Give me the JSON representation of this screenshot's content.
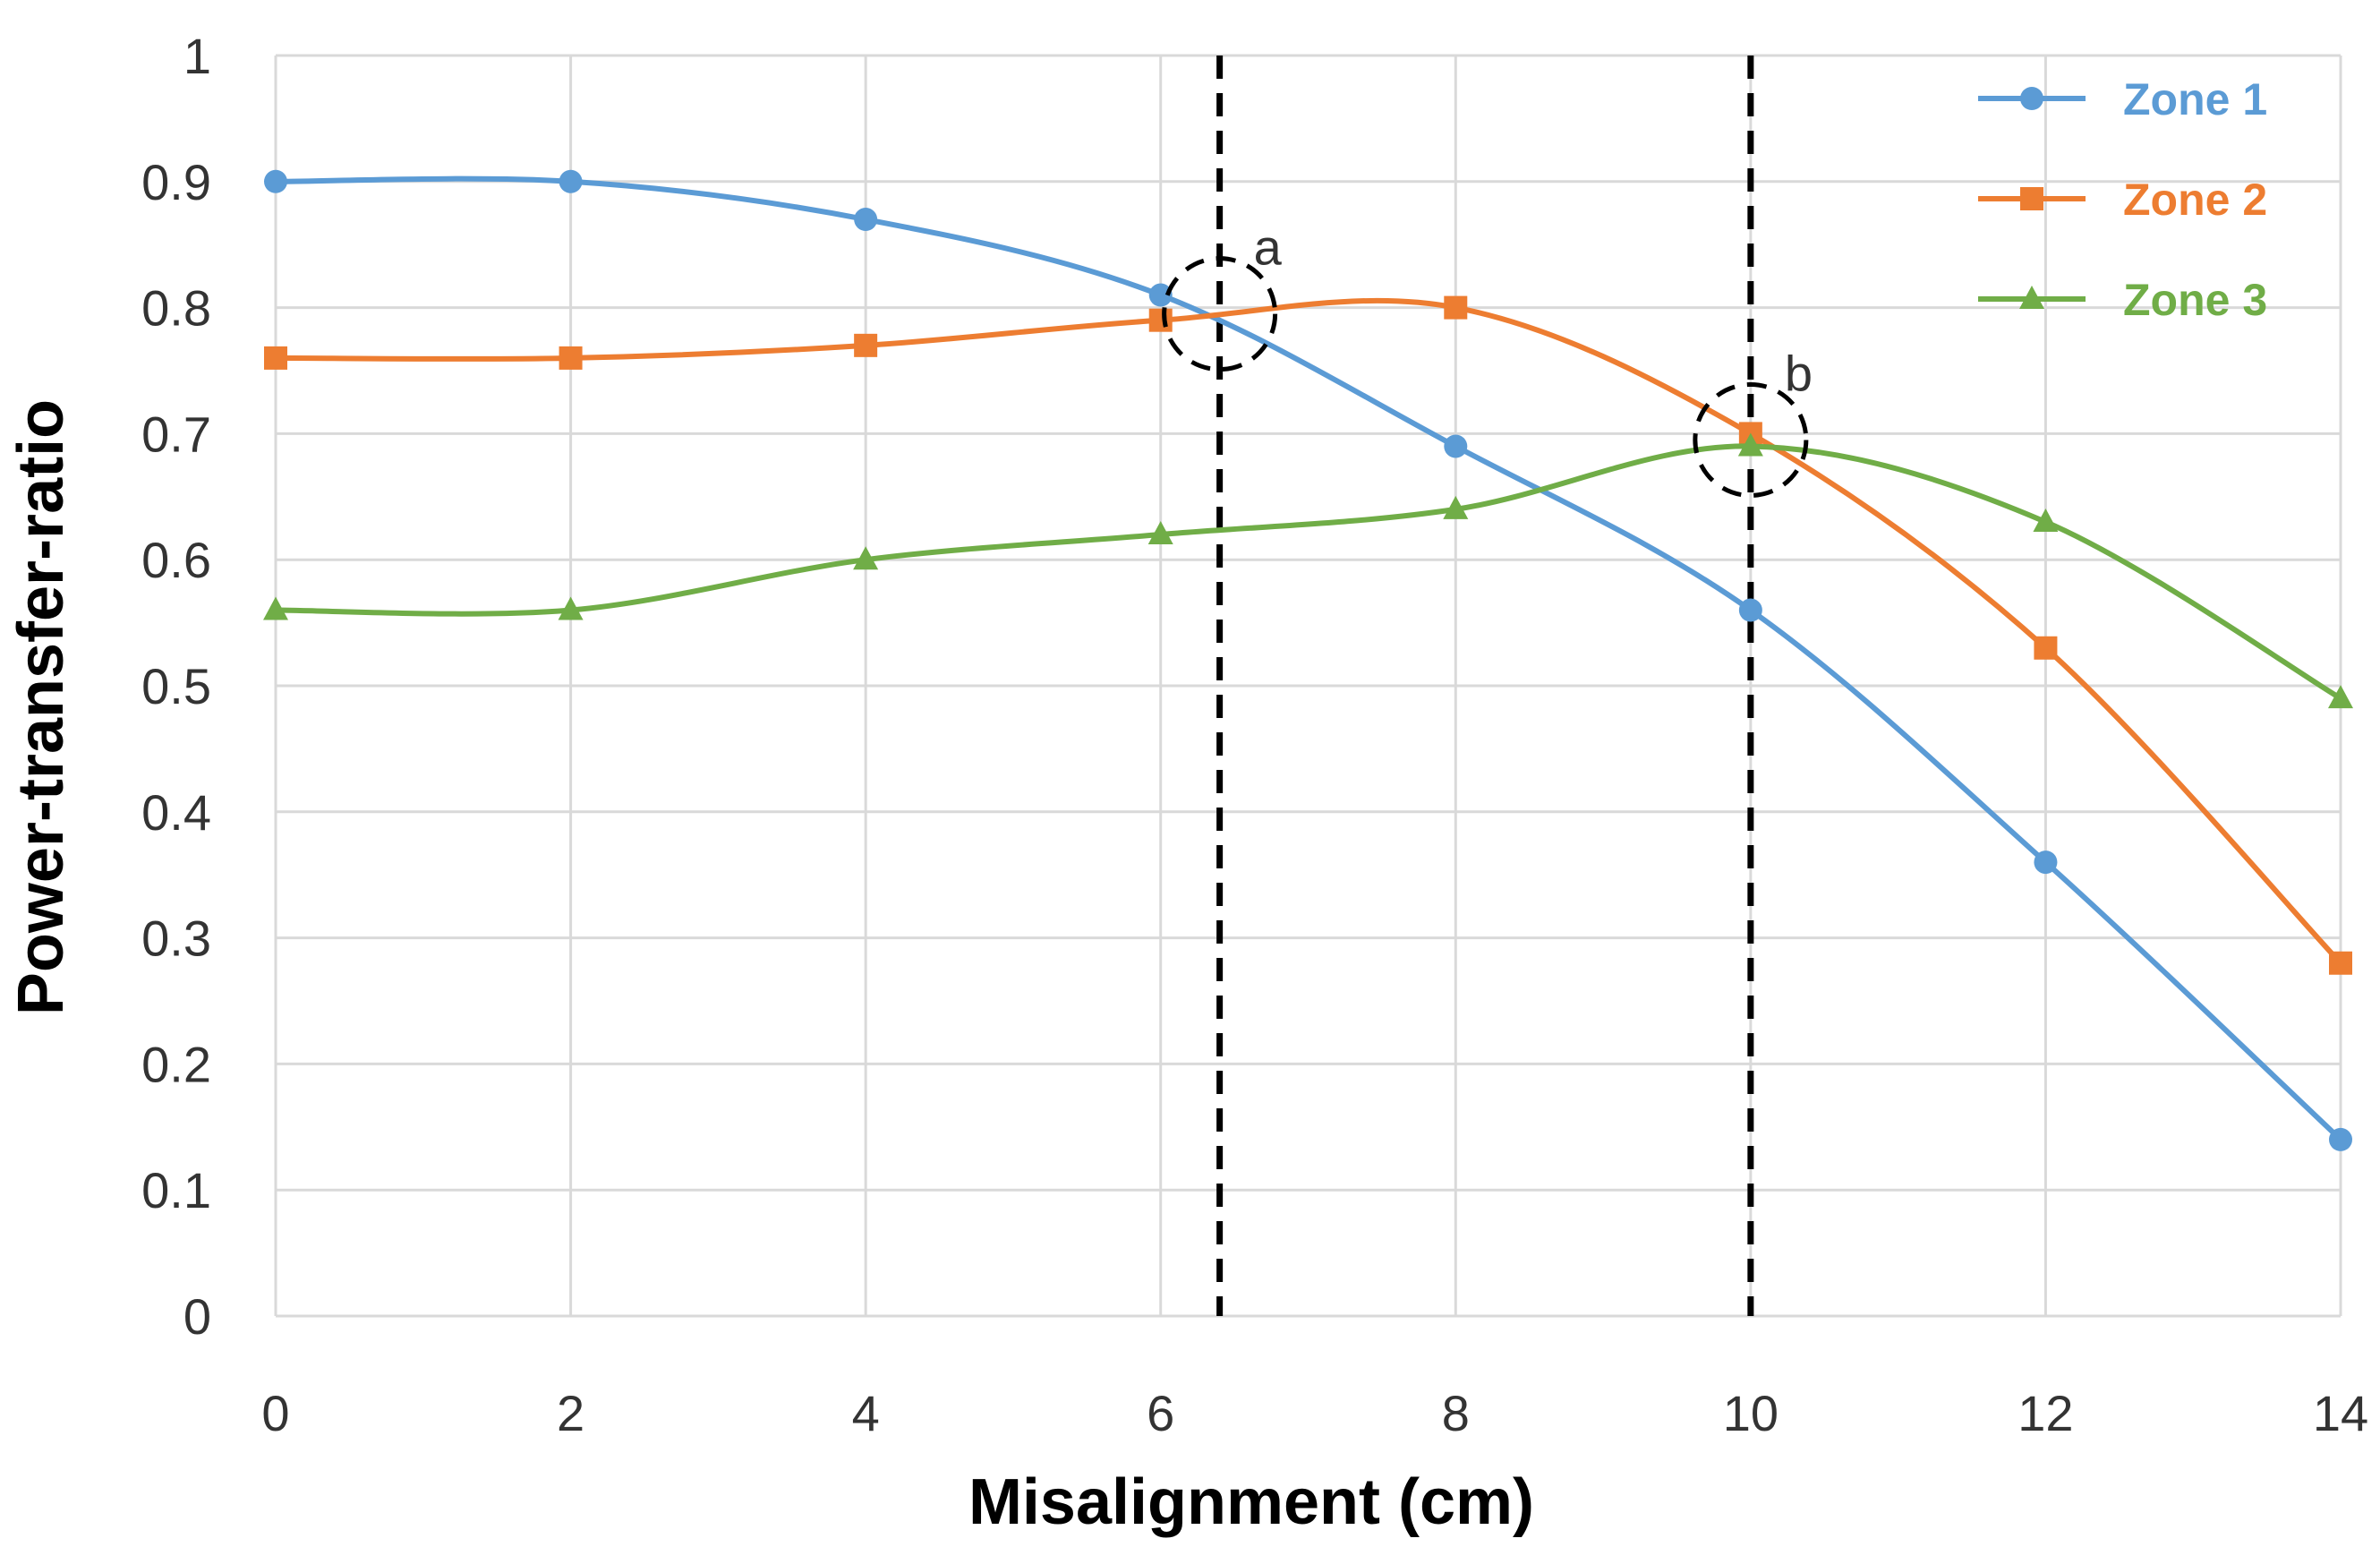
{
  "chart_data": {
    "type": "line",
    "title": "",
    "xlabel": "Misalignment (cm)",
    "ylabel": "Power-transfer-ratio",
    "x": [
      0,
      2,
      4,
      6,
      8,
      10,
      12,
      14
    ],
    "xlim": [
      0,
      14
    ],
    "ylim": [
      0,
      1
    ],
    "xticks": [
      "0",
      "2",
      "4",
      "6",
      "8",
      "10",
      "12",
      "14"
    ],
    "yticks": [
      "0",
      "0.1",
      "0.2",
      "0.3",
      "0.4",
      "0.5",
      "0.6",
      "0.7",
      "0.8",
      "0.9",
      "1"
    ],
    "grid": true,
    "legend_position": "top-right",
    "series": [
      {
        "name": "Zone 1",
        "color": "#5b9bd5",
        "marker": "circle",
        "values": [
          0.9,
          0.9,
          0.87,
          0.81,
          0.69,
          0.56,
          0.36,
          0.14
        ]
      },
      {
        "name": "Zone 2",
        "color": "#ed7d31",
        "marker": "square",
        "values": [
          0.76,
          0.76,
          0.77,
          0.79,
          0.8,
          0.7,
          0.53,
          0.28
        ]
      },
      {
        "name": "Zone 3",
        "color": "#70ad47",
        "marker": "triangle",
        "values": [
          0.56,
          0.56,
          0.6,
          0.62,
          0.64,
          0.69,
          0.63,
          0.49
        ]
      }
    ],
    "reference_lines": [
      {
        "x": 6.4,
        "style": "dashed"
      },
      {
        "x": 10,
        "style": "dashed"
      }
    ],
    "annotations": [
      {
        "label": "a",
        "x": 6.4,
        "y": 0.795
      },
      {
        "label": "b",
        "x": 10,
        "y": 0.695
      }
    ]
  }
}
